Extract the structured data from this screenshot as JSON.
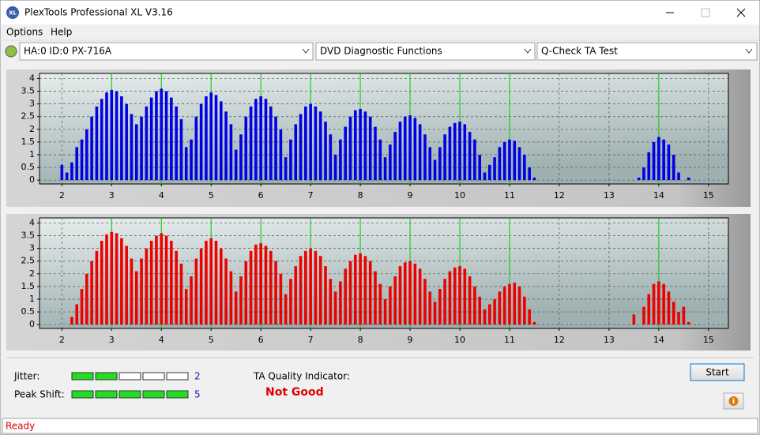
{
  "window": {
    "title": "PlexTools Professional XL V3.16",
    "menu": [
      "Options",
      "Help"
    ],
    "selectors": [
      "HA:0 ID:0  PX-716A",
      "DVD Diagnostic Functions",
      "Q-Check TA Test"
    ],
    "status": "Ready"
  },
  "chart_data": [
    {
      "type": "bar",
      "color": "#0000e6",
      "grid": true,
      "reference_lines": [
        3,
        4,
        5,
        6,
        7,
        8,
        9,
        10,
        11,
        14
      ],
      "reference_color": "#00d000",
      "xlim": [
        1.55,
        15.4
      ],
      "ylim": [
        -0.15,
        4.2
      ],
      "xticks": [
        2,
        3,
        4,
        5,
        6,
        7,
        8,
        9,
        10,
        11,
        12,
        13,
        14,
        15
      ],
      "yticks": [
        0,
        0.5,
        1,
        1.5,
        2,
        2.5,
        3,
        3.5,
        4
      ],
      "x": [
        2,
        2.1,
        2.2,
        2.3,
        2.4,
        2.5,
        2.6,
        2.7,
        2.8,
        2.9,
        3,
        3.1,
        3.2,
        3.3,
        3.4,
        3.5,
        3.6,
        3.7,
        3.8,
        3.9,
        4,
        4.1,
        4.2,
        4.3,
        4.4,
        4.5,
        4.6,
        4.7,
        4.8,
        4.9,
        5,
        5.1,
        5.2,
        5.3,
        5.4,
        5.5,
        5.6,
        5.7,
        5.8,
        5.9,
        6,
        6.1,
        6.2,
        6.3,
        6.4,
        6.5,
        6.6,
        6.7,
        6.8,
        6.9,
        7,
        7.1,
        7.2,
        7.3,
        7.4,
        7.5,
        7.6,
        7.7,
        7.8,
        7.9,
        8,
        8.1,
        8.2,
        8.3,
        8.4,
        8.5,
        8.6,
        8.7,
        8.8,
        8.9,
        9,
        9.1,
        9.2,
        9.3,
        9.4,
        9.5,
        9.6,
        9.7,
        9.8,
        9.9,
        10,
        10.1,
        10.2,
        10.3,
        10.4,
        10.5,
        10.6,
        10.7,
        10.8,
        10.9,
        11,
        11.1,
        11.2,
        11.3,
        11.4,
        11.5,
        13.6,
        13.7,
        13.8,
        13.9,
        14,
        14.1,
        14.2,
        14.3,
        14.4,
        14.6
      ],
      "values": [
        0.6,
        0.3,
        0.7,
        1.3,
        1.6,
        2.0,
        2.5,
        2.9,
        3.2,
        3.45,
        3.55,
        3.5,
        3.3,
        3.0,
        2.6,
        2.2,
        2.5,
        2.9,
        3.25,
        3.5,
        3.6,
        3.5,
        3.25,
        2.9,
        2.4,
        1.3,
        1.6,
        2.5,
        3.0,
        3.3,
        3.45,
        3.35,
        3.1,
        2.7,
        2.2,
        1.2,
        1.8,
        2.5,
        2.9,
        3.2,
        3.3,
        3.2,
        2.9,
        2.5,
        2.0,
        0.9,
        1.6,
        2.2,
        2.6,
        2.9,
        3.0,
        2.9,
        2.7,
        2.3,
        1.8,
        1.0,
        1.6,
        2.1,
        2.5,
        2.75,
        2.8,
        2.7,
        2.5,
        2.1,
        1.6,
        0.9,
        1.4,
        1.9,
        2.3,
        2.5,
        2.55,
        2.45,
        2.2,
        1.8,
        1.3,
        0.8,
        1.3,
        1.8,
        2.1,
        2.25,
        2.3,
        2.2,
        1.9,
        1.6,
        1.0,
        0.3,
        0.6,
        0.9,
        1.3,
        1.5,
        1.6,
        1.55,
        1.3,
        1.0,
        0.5,
        0.1,
        0.1,
        0.5,
        1.1,
        1.5,
        1.7,
        1.6,
        1.4,
        1.0,
        0.3,
        0.1
      ]
    },
    {
      "type": "bar",
      "color": "#ee0000",
      "grid": true,
      "reference_lines": [
        3,
        4,
        5,
        6,
        7,
        8,
        9,
        10,
        11,
        14
      ],
      "reference_color": "#00d000",
      "xlim": [
        1.55,
        15.4
      ],
      "ylim": [
        -0.15,
        4.2
      ],
      "xticks": [
        2,
        3,
        4,
        5,
        6,
        7,
        8,
        9,
        10,
        11,
        12,
        13,
        14,
        15
      ],
      "yticks": [
        0,
        0.5,
        1,
        1.5,
        2,
        2.5,
        3,
        3.5,
        4
      ],
      "x": [
        2.2,
        2.3,
        2.4,
        2.5,
        2.6,
        2.7,
        2.8,
        2.9,
        3,
        3.1,
        3.2,
        3.3,
        3.4,
        3.5,
        3.6,
        3.7,
        3.8,
        3.9,
        4,
        4.1,
        4.2,
        4.3,
        4.4,
        4.5,
        4.6,
        4.7,
        4.8,
        4.9,
        5,
        5.1,
        5.2,
        5.3,
        5.4,
        5.5,
        5.6,
        5.7,
        5.8,
        5.9,
        6,
        6.1,
        6.2,
        6.3,
        6.4,
        6.5,
        6.6,
        6.7,
        6.8,
        6.9,
        7,
        7.1,
        7.2,
        7.3,
        7.4,
        7.5,
        7.6,
        7.7,
        7.8,
        7.9,
        8,
        8.1,
        8.2,
        8.3,
        8.4,
        8.5,
        8.6,
        8.7,
        8.8,
        8.9,
        9,
        9.1,
        9.2,
        9.3,
        9.4,
        9.5,
        9.6,
        9.7,
        9.8,
        9.9,
        10,
        10.1,
        10.2,
        10.3,
        10.4,
        10.5,
        10.6,
        10.7,
        10.8,
        10.9,
        11,
        11.1,
        11.2,
        11.3,
        11.4,
        11.5,
        13.5,
        13.7,
        13.8,
        13.9,
        14,
        14.1,
        14.2,
        14.3,
        14.4,
        14.5,
        14.6
      ],
      "values": [
        0.3,
        0.8,
        1.4,
        2.0,
        2.5,
        2.9,
        3.3,
        3.55,
        3.65,
        3.6,
        3.4,
        3.1,
        2.6,
        2.1,
        2.6,
        3.0,
        3.3,
        3.5,
        3.6,
        3.5,
        3.3,
        2.9,
        2.4,
        1.4,
        1.9,
        2.6,
        3.0,
        3.3,
        3.4,
        3.3,
        3.0,
        2.6,
        2.1,
        1.3,
        1.9,
        2.5,
        2.9,
        3.15,
        3.2,
        3.1,
        2.9,
        2.5,
        2.0,
        1.2,
        1.8,
        2.3,
        2.7,
        2.9,
        3.0,
        2.9,
        2.7,
        2.3,
        1.8,
        1.3,
        1.7,
        2.2,
        2.5,
        2.75,
        2.8,
        2.7,
        2.5,
        2.1,
        1.6,
        1.0,
        1.5,
        1.9,
        2.3,
        2.45,
        2.5,
        2.4,
        2.2,
        1.8,
        1.3,
        0.9,
        1.4,
        1.8,
        2.1,
        2.25,
        2.3,
        2.2,
        1.9,
        1.5,
        1.1,
        0.6,
        0.8,
        1.0,
        1.3,
        1.5,
        1.6,
        1.65,
        1.5,
        1.1,
        0.6,
        0.1,
        0.4,
        0.7,
        1.2,
        1.6,
        1.7,
        1.6,
        1.3,
        0.9,
        0.5,
        0.7,
        0.1
      ]
    }
  ],
  "indicators": {
    "jitter": {
      "label": "Jitter:",
      "value": 2
    },
    "peak_shift": {
      "label": "Peak Shift:",
      "value": 5
    },
    "scale_max": 5,
    "quality_label": "TA Quality Indicator:",
    "quality": "Not Good"
  },
  "buttons": {
    "start": "Start"
  }
}
